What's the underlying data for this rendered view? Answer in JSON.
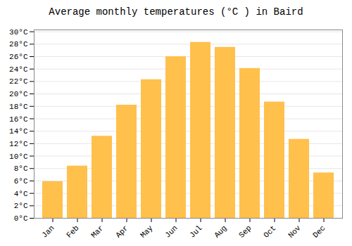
{
  "chart_data": {
    "type": "bar",
    "title": "Average monthly temperatures (°C ) in Baird",
    "categories": [
      "Jan",
      "Feb",
      "Mar",
      "Apr",
      "May",
      "Jun",
      "Jul",
      "Aug",
      "Sep",
      "Oct",
      "Nov",
      "Dec"
    ],
    "values": [
      5.9,
      8.4,
      13.2,
      18.2,
      22.3,
      26.0,
      28.3,
      27.5,
      24.1,
      18.7,
      12.7,
      7.3
    ],
    "color": "#FFC04C",
    "ylim": [
      0,
      30.3
    ],
    "yticks": [
      {
        "value": 0,
        "label": "0°C"
      },
      {
        "value": 2,
        "label": "2°C"
      },
      {
        "value": 4,
        "label": "4°C"
      },
      {
        "value": 6,
        "label": "6°C"
      },
      {
        "value": 8,
        "label": "8°C"
      },
      {
        "value": 10,
        "label": "10°C"
      },
      {
        "value": 12,
        "label": "12°C"
      },
      {
        "value": 14,
        "label": "14°C"
      },
      {
        "value": 16,
        "label": "16°C"
      },
      {
        "value": 18,
        "label": "18°C"
      },
      {
        "value": 20,
        "label": "20°C"
      },
      {
        "value": 22,
        "label": "22°C"
      },
      {
        "value": 24,
        "label": "24°C"
      },
      {
        "value": 26,
        "label": "26°C"
      },
      {
        "value": 28,
        "label": "28°C"
      },
      {
        "value": 30,
        "label": "30°C"
      }
    ],
    "grid": true
  }
}
